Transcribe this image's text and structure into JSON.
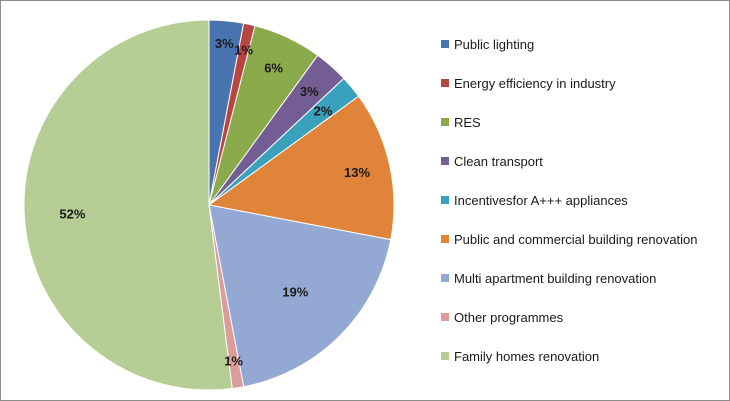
{
  "chart_data": {
    "type": "pie",
    "categories": [
      "Public lighting",
      "Energy efficiency in industry",
      "RES",
      "Clean transport",
      "Incentivesfor A+++ appliances",
      "Public and commercial building renovation",
      "Multi apartment  building renovation",
      "Other programmes",
      "Family homes renovation"
    ],
    "values": [
      3,
      1,
      6,
      3,
      2,
      13,
      19,
      1,
      52
    ],
    "data_labels": [
      "3%",
      "1%",
      "6%",
      "3%",
      "2%",
      "13%",
      "19%",
      "1%",
      "52%"
    ],
    "colors": [
      "#4a74b0",
      "#b94543",
      "#8aaa4c",
      "#745d93",
      "#3aa1bd",
      "#e0843a",
      "#93a9d4",
      "#dc9c9a",
      "#b6cd95"
    ],
    "legend_position": "right",
    "start_angle": "12 o'clock",
    "direction": "clockwise"
  }
}
